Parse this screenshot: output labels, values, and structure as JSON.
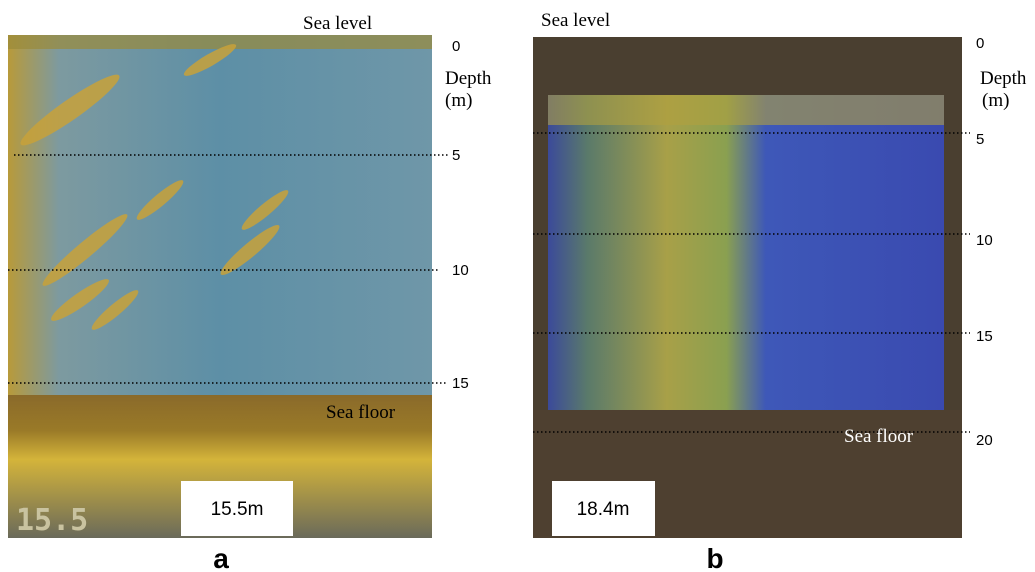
{
  "panels": [
    {
      "letter": "a",
      "sea_level": "Sea level",
      "sea_floor": "Sea floor",
      "depth": "Depth",
      "unit": "(m)",
      "ticks": [
        "0",
        "5",
        "10",
        "15"
      ],
      "reading": "15.5m",
      "screen_text": "15.5"
    },
    {
      "letter": "b",
      "sea_level": "Sea level",
      "sea_floor": "Sea floor",
      "depth": "Depth",
      "unit": "(m)",
      "ticks": [
        "0",
        "5",
        "10",
        "15",
        "20"
      ],
      "reading": "18.4m"
    }
  ]
}
